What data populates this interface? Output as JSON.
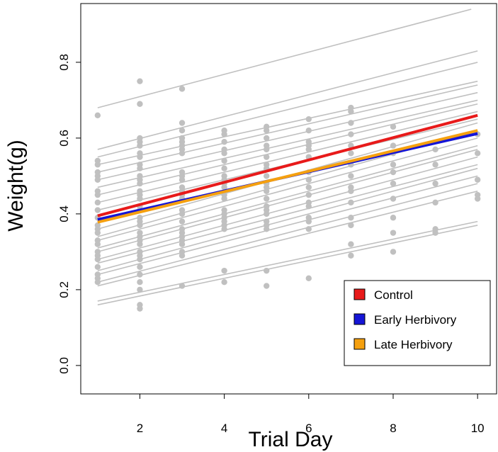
{
  "chart_data": {
    "type": "line",
    "xlabel": "Trial Day",
    "ylabel": "Weight(g)",
    "xlim": [
      0.6,
      10.45
    ],
    "ylim": [
      -0.075,
      0.955
    ],
    "x_ticks": [
      2,
      4,
      6,
      8,
      10
    ],
    "y_ticks": [
      0.0,
      0.2,
      0.4,
      0.6,
      0.8
    ],
    "x_tick_labels": [
      "2",
      "4",
      "6",
      "8",
      "10"
    ],
    "y_tick_labels": [
      "0.0",
      "0.2",
      "0.4",
      "0.6",
      "0.8"
    ],
    "grid": false,
    "legend_position": "bottom-right",
    "individual_color": "#c0c0c0",
    "individual_lines": [
      [
        1,
        0.16,
        10,
        0.37
      ],
      [
        1,
        0.17,
        10,
        0.38
      ],
      [
        1,
        0.21,
        10,
        0.46
      ],
      [
        1,
        0.22,
        10,
        0.48
      ],
      [
        1,
        0.24,
        10,
        0.5
      ],
      [
        1,
        0.25,
        10,
        0.52
      ],
      [
        1,
        0.27,
        10,
        0.53
      ],
      [
        1,
        0.28,
        10,
        0.55
      ],
      [
        1,
        0.3,
        10,
        0.57
      ],
      [
        1,
        0.31,
        10,
        0.58
      ],
      [
        1,
        0.33,
        10,
        0.6
      ],
      [
        1,
        0.34,
        10,
        0.62
      ],
      [
        1,
        0.36,
        10,
        0.64
      ],
      [
        1,
        0.41,
        10,
        0.65
      ],
      [
        1,
        0.43,
        10,
        0.67
      ],
      [
        1,
        0.45,
        10,
        0.69
      ],
      [
        1,
        0.47,
        10,
        0.7
      ],
      [
        1,
        0.49,
        10,
        0.72
      ],
      [
        1,
        0.51,
        10,
        0.74
      ],
      [
        1,
        0.53,
        10,
        0.75
      ],
      [
        1,
        0.55,
        10,
        0.8
      ],
      [
        1,
        0.57,
        10,
        0.83
      ],
      [
        1,
        0.68,
        9.85,
        0.94
      ]
    ],
    "points": [
      [
        1,
        0.66
      ],
      [
        1,
        0.54
      ],
      [
        1,
        0.53
      ],
      [
        1,
        0.51
      ],
      [
        1,
        0.5
      ],
      [
        1,
        0.49
      ],
      [
        1,
        0.46
      ],
      [
        1,
        0.45
      ],
      [
        1,
        0.43
      ],
      [
        1,
        0.41
      ],
      [
        1,
        0.39
      ],
      [
        1,
        0.37
      ],
      [
        1,
        0.36
      ],
      [
        1,
        0.35
      ],
      [
        1,
        0.33
      ],
      [
        1,
        0.32
      ],
      [
        1,
        0.3
      ],
      [
        1,
        0.29
      ],
      [
        1,
        0.28
      ],
      [
        1,
        0.26
      ],
      [
        1,
        0.24
      ],
      [
        1,
        0.23
      ],
      [
        1,
        0.22
      ],
      [
        2,
        0.75
      ],
      [
        2,
        0.69
      ],
      [
        2,
        0.6
      ],
      [
        2,
        0.59
      ],
      [
        2,
        0.58
      ],
      [
        2,
        0.56
      ],
      [
        2,
        0.55
      ],
      [
        2,
        0.53
      ],
      [
        2,
        0.52
      ],
      [
        2,
        0.5
      ],
      [
        2,
        0.49
      ],
      [
        2,
        0.48
      ],
      [
        2,
        0.46
      ],
      [
        2,
        0.45
      ],
      [
        2,
        0.44
      ],
      [
        2,
        0.42
      ],
      [
        2,
        0.41
      ],
      [
        2,
        0.39
      ],
      [
        2,
        0.38
      ],
      [
        2,
        0.37
      ],
      [
        2,
        0.35
      ],
      [
        2,
        0.34
      ],
      [
        2,
        0.33
      ],
      [
        2,
        0.32
      ],
      [
        2,
        0.3
      ],
      [
        2,
        0.29
      ],
      [
        2,
        0.28
      ],
      [
        2,
        0.26
      ],
      [
        2,
        0.24
      ],
      [
        2,
        0.22
      ],
      [
        2,
        0.2
      ],
      [
        2,
        0.16
      ],
      [
        2,
        0.15
      ],
      [
        3,
        0.73
      ],
      [
        3,
        0.64
      ],
      [
        3,
        0.62
      ],
      [
        3,
        0.6
      ],
      [
        3,
        0.59
      ],
      [
        3,
        0.58
      ],
      [
        3,
        0.57
      ],
      [
        3,
        0.56
      ],
      [
        3,
        0.51
      ],
      [
        3,
        0.5
      ],
      [
        3,
        0.49
      ],
      [
        3,
        0.47
      ],
      [
        3,
        0.46
      ],
      [
        3,
        0.45
      ],
      [
        3,
        0.44
      ],
      [
        3,
        0.41
      ],
      [
        3,
        0.4
      ],
      [
        3,
        0.38
      ],
      [
        3,
        0.36
      ],
      [
        3,
        0.35
      ],
      [
        3,
        0.34
      ],
      [
        3,
        0.33
      ],
      [
        3,
        0.32
      ],
      [
        3,
        0.3
      ],
      [
        3,
        0.29
      ],
      [
        3,
        0.21
      ],
      [
        4,
        0.62
      ],
      [
        4,
        0.61
      ],
      [
        4,
        0.59
      ],
      [
        4,
        0.57
      ],
      [
        4,
        0.56
      ],
      [
        4,
        0.54
      ],
      [
        4,
        0.52
      ],
      [
        4,
        0.5
      ],
      [
        4,
        0.49
      ],
      [
        4,
        0.48
      ],
      [
        4,
        0.47
      ],
      [
        4,
        0.45
      ],
      [
        4,
        0.44
      ],
      [
        4,
        0.41
      ],
      [
        4,
        0.4
      ],
      [
        4,
        0.39
      ],
      [
        4,
        0.38
      ],
      [
        4,
        0.37
      ],
      [
        4,
        0.36
      ],
      [
        4,
        0.25
      ],
      [
        4,
        0.22
      ],
      [
        5,
        0.63
      ],
      [
        5,
        0.62
      ],
      [
        5,
        0.6
      ],
      [
        5,
        0.58
      ],
      [
        5,
        0.57
      ],
      [
        5,
        0.55
      ],
      [
        5,
        0.53
      ],
      [
        5,
        0.52
      ],
      [
        5,
        0.5
      ],
      [
        5,
        0.48
      ],
      [
        5,
        0.47
      ],
      [
        5,
        0.46
      ],
      [
        5,
        0.44
      ],
      [
        5,
        0.42
      ],
      [
        5,
        0.41
      ],
      [
        5,
        0.4
      ],
      [
        5,
        0.38
      ],
      [
        5,
        0.37
      ],
      [
        5,
        0.36
      ],
      [
        5,
        0.25
      ],
      [
        5,
        0.21
      ],
      [
        6,
        0.65
      ],
      [
        6,
        0.62
      ],
      [
        6,
        0.59
      ],
      [
        6,
        0.58
      ],
      [
        6,
        0.57
      ],
      [
        6,
        0.55
      ],
      [
        6,
        0.51
      ],
      [
        6,
        0.49
      ],
      [
        6,
        0.47
      ],
      [
        6,
        0.45
      ],
      [
        6,
        0.43
      ],
      [
        6,
        0.42
      ],
      [
        6,
        0.39
      ],
      [
        6,
        0.38
      ],
      [
        6,
        0.36
      ],
      [
        6,
        0.23
      ],
      [
        7,
        0.68
      ],
      [
        7,
        0.67
      ],
      [
        7,
        0.64
      ],
      [
        7,
        0.61
      ],
      [
        7,
        0.58
      ],
      [
        7,
        0.56
      ],
      [
        7,
        0.53
      ],
      [
        7,
        0.5
      ],
      [
        7,
        0.47
      ],
      [
        7,
        0.46
      ],
      [
        7,
        0.43
      ],
      [
        7,
        0.39
      ],
      [
        7,
        0.37
      ],
      [
        7,
        0.32
      ],
      [
        7,
        0.29
      ],
      [
        8,
        0.63
      ],
      [
        8,
        0.58
      ],
      [
        8,
        0.56
      ],
      [
        8,
        0.53
      ],
      [
        8,
        0.51
      ],
      [
        8,
        0.48
      ],
      [
        8,
        0.44
      ],
      [
        8,
        0.39
      ],
      [
        8,
        0.35
      ],
      [
        8,
        0.3
      ],
      [
        9,
        0.57
      ],
      [
        9,
        0.53
      ],
      [
        9,
        0.48
      ],
      [
        9,
        0.43
      ],
      [
        9,
        0.36
      ],
      [
        9,
        0.35
      ],
      [
        10,
        0.61
      ],
      [
        10,
        0.56
      ],
      [
        10,
        0.49
      ],
      [
        10,
        0.45
      ],
      [
        10,
        0.44
      ]
    ],
    "series": [
      {
        "name": "Control",
        "color": "#e81a1a",
        "x": [
          1,
          10
        ],
        "values": [
          0.395,
          0.66
        ]
      },
      {
        "name": "Early Herbivory",
        "color": "#1515d6",
        "x": [
          1,
          10
        ],
        "values": [
          0.385,
          0.612
        ]
      },
      {
        "name": "Late Herbivory",
        "color": "#f5a00f",
        "x": [
          1,
          10
        ],
        "values": [
          0.378,
          0.62
        ]
      }
    ]
  }
}
